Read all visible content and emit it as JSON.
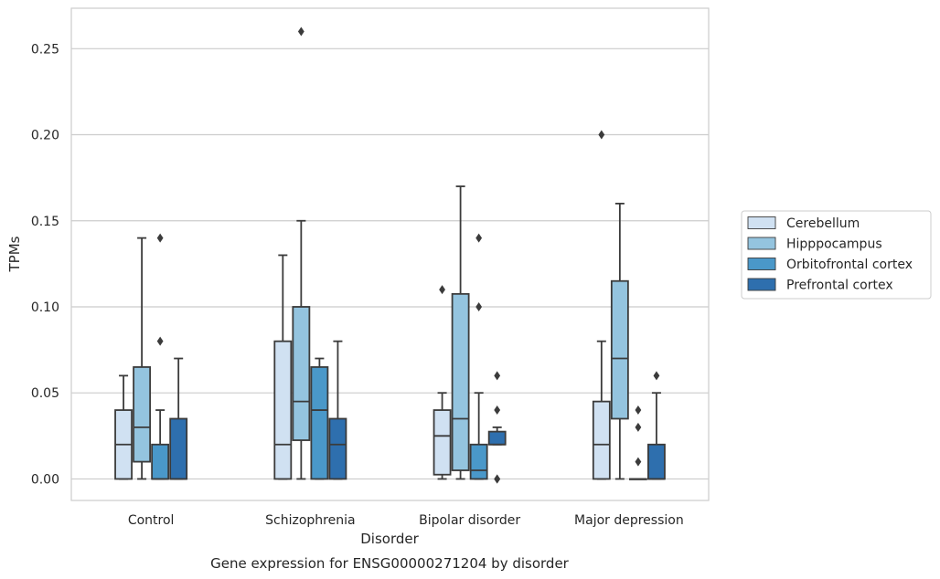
{
  "caption": "Gene expression for ENSG00000271204 by disorder",
  "chart_data": {
    "type": "box",
    "xlabel": "Disorder",
    "ylabel": "TPMs",
    "ylim": [
      -0.0125,
      0.2735
    ],
    "yticks": [
      0.0,
      0.05,
      0.1,
      0.15,
      0.2,
      0.25
    ],
    "ytick_labels": [
      "0.00",
      "0.05",
      "0.10",
      "0.15",
      "0.20",
      "0.25"
    ],
    "grid": true,
    "legend_position": "right",
    "categories": [
      "Control",
      "Schizophrenia",
      "Bipolar disorder",
      "Major depression"
    ],
    "series": [
      {
        "name": "Cerebellum",
        "color": "#d0e1f2",
        "boxes": [
          {
            "whislo": 0.0,
            "q1": 0.0,
            "med": 0.02,
            "q3": 0.04,
            "whishi": 0.06,
            "fliers": []
          },
          {
            "whislo": 0.0,
            "q1": 0.0,
            "med": 0.02,
            "q3": 0.08,
            "whishi": 0.13,
            "fliers": []
          },
          {
            "whislo": 0.0,
            "q1": 0.0025,
            "med": 0.025,
            "q3": 0.04,
            "whishi": 0.05,
            "fliers": [
              0.11
            ]
          },
          {
            "whislo": 0.0,
            "q1": 0.0,
            "med": 0.02,
            "q3": 0.045,
            "whishi": 0.08,
            "fliers": [
              0.2
            ]
          }
        ]
      },
      {
        "name": "Hipppocampus",
        "color": "#94c4df",
        "boxes": [
          {
            "whislo": 0.0,
            "q1": 0.01,
            "med": 0.03,
            "q3": 0.065,
            "whishi": 0.14,
            "fliers": []
          },
          {
            "whislo": 0.0,
            "q1": 0.0225,
            "med": 0.045,
            "q3": 0.1,
            "whishi": 0.15,
            "fliers": [
              0.26
            ]
          },
          {
            "whislo": 0.0,
            "q1": 0.005,
            "med": 0.035,
            "q3": 0.1075,
            "whishi": 0.17,
            "fliers": []
          },
          {
            "whislo": 0.0,
            "q1": 0.035,
            "med": 0.07,
            "q3": 0.115,
            "whishi": 0.16,
            "fliers": []
          }
        ]
      },
      {
        "name": "Orbitofrontal cortex",
        "color": "#4a98c9",
        "boxes": [
          {
            "whislo": 0.0,
            "q1": 0.0,
            "med": 0.0,
            "q3": 0.02,
            "whishi": 0.04,
            "fliers": [
              0.08,
              0.14
            ]
          },
          {
            "whislo": 0.0,
            "q1": 0.0,
            "med": 0.04,
            "q3": 0.065,
            "whishi": 0.07,
            "fliers": []
          },
          {
            "whislo": 0.0,
            "q1": 0.0,
            "med": 0.005,
            "q3": 0.02,
            "whishi": 0.05,
            "fliers": [
              0.1,
              0.14
            ]
          },
          {
            "whislo": 0.0,
            "q1": 0.0,
            "med": 0.0,
            "q3": 0.0,
            "whishi": 0.0,
            "fliers": [
              0.01,
              0.03,
              0.04
            ]
          }
        ]
      },
      {
        "name": "Prefrontal cortex",
        "color": "#2e6fae",
        "boxes": [
          {
            "whislo": 0.0,
            "q1": 0.0,
            "med": 0.0,
            "q3": 0.035,
            "whishi": 0.07,
            "fliers": []
          },
          {
            "whislo": 0.0,
            "q1": 0.0,
            "med": 0.02,
            "q3": 0.035,
            "whishi": 0.08,
            "fliers": []
          },
          {
            "whislo": 0.02,
            "q1": 0.02,
            "med": 0.02,
            "q3": 0.0275,
            "whishi": 0.03,
            "fliers": [
              0.0,
              0.0,
              0.04,
              0.06
            ]
          },
          {
            "whislo": 0.0,
            "q1": 0.0,
            "med": 0.0,
            "q3": 0.02,
            "whishi": 0.05,
            "fliers": [
              0.06
            ]
          }
        ]
      }
    ]
  }
}
